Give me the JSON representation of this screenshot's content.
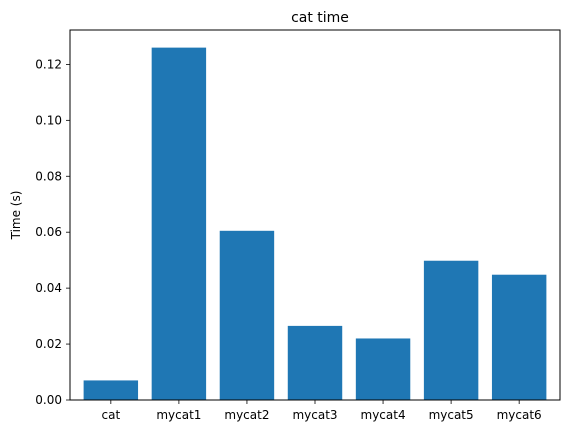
{
  "chart_data": {
    "type": "bar",
    "title": "cat time",
    "xlabel": "",
    "ylabel": "Time (s)",
    "categories": [
      "cat",
      "mycat1",
      "mycat2",
      "mycat3",
      "mycat4",
      "mycat5",
      "mycat6"
    ],
    "values": [
      0.007,
      0.126,
      0.0605,
      0.0265,
      0.022,
      0.0498,
      0.0448
    ],
    "ylim": [
      0,
      0.1323
    ],
    "yticks": [
      0.0,
      0.02,
      0.04,
      0.06,
      0.08,
      0.1,
      0.12
    ],
    "ytick_labels": [
      "0.00",
      "0.02",
      "0.04",
      "0.06",
      "0.08",
      "0.10",
      "0.12"
    ],
    "grid": false,
    "bar_color": "#1f77b4"
  }
}
